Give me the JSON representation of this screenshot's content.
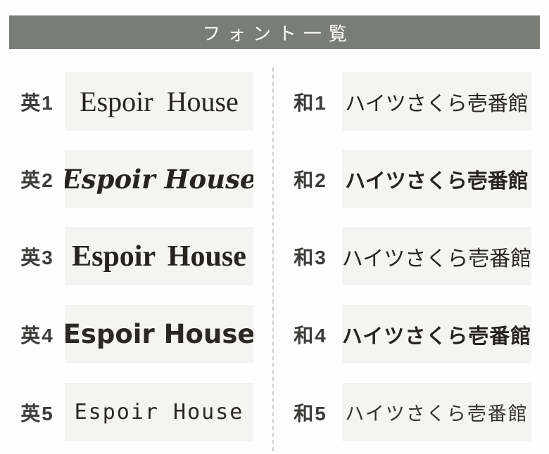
{
  "header": {
    "title": "フォント一覧"
  },
  "english_column": {
    "rows": [
      {
        "label": "英1",
        "text": "Espoir House",
        "style_hint": "serif-regular"
      },
      {
        "label": "英2",
        "text": "Espoir House",
        "style_hint": "serif-bold-italic"
      },
      {
        "label": "英3",
        "text": "Espoir House",
        "style_hint": "serif-bold"
      },
      {
        "label": "英4",
        "text": "Espoir House",
        "style_hint": "geometric-sans-bold"
      },
      {
        "label": "英5",
        "text": "Espoir House",
        "style_hint": "monoline-light"
      }
    ]
  },
  "japanese_column": {
    "rows": [
      {
        "label": "和1",
        "text": "ハイツさくら壱番館",
        "style_hint": "gothic-regular"
      },
      {
        "label": "和2",
        "text": "ハイツさくら壱番館",
        "style_hint": "rounded-gothic-bold"
      },
      {
        "label": "和3",
        "text": "ハイツさくら壱番館",
        "style_hint": "mincho-serif"
      },
      {
        "label": "和4",
        "text": "ハイツさくら壱番館",
        "style_hint": "sharp-gothic-bold"
      },
      {
        "label": "和5",
        "text": "ハイツさくら壱番館",
        "style_hint": "handwriting-thin"
      }
    ]
  },
  "colors": {
    "header_bg": "#797d75",
    "header_text": "#ffffff",
    "sample_box_bg": "#f4f4f2",
    "label_text": "#3c3c3a",
    "sample_text": "#272420",
    "divider": "#cfcfcf"
  }
}
